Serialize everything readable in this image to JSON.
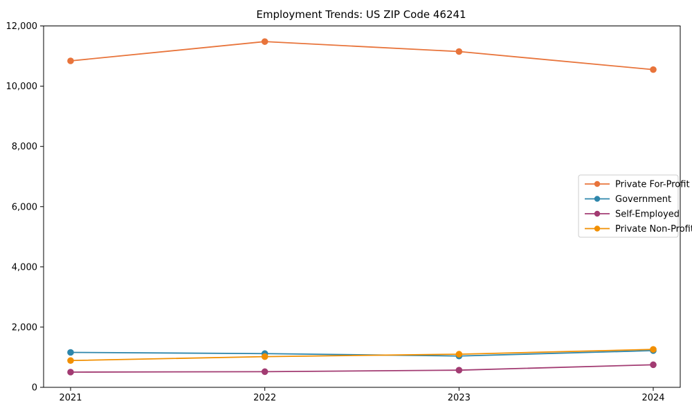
{
  "chart_data": {
    "type": "line",
    "title": "Employment Trends: US ZIP Code 46241",
    "xlabel": "",
    "ylabel": "",
    "x": [
      "2021",
      "2022",
      "2023",
      "2024"
    ],
    "series": [
      {
        "name": "Private For-Profit",
        "color": "#e8743b",
        "values": [
          10840,
          11480,
          11150,
          10550
        ]
      },
      {
        "name": "Government",
        "color": "#2e86ab",
        "values": [
          1160,
          1120,
          1040,
          1220
        ]
      },
      {
        "name": "Self-Employed",
        "color": "#a23b72",
        "values": [
          505,
          520,
          570,
          750
        ]
      },
      {
        "name": "Private Non-Profit",
        "color": "#f18f01",
        "values": [
          890,
          1020,
          1100,
          1260
        ]
      }
    ],
    "ylim": [
      0,
      12000
    ],
    "yticks": [
      0,
      2000,
      4000,
      6000,
      8000,
      10000,
      12000
    ],
    "ytick_labels": [
      "0",
      "2,000",
      "4,000",
      "6,000",
      "8,000",
      "10,000",
      "12,000"
    ],
    "grid": false,
    "legend_position": "center right",
    "marker": "circle",
    "background": "#ffffff",
    "spine_color": "#000000"
  }
}
